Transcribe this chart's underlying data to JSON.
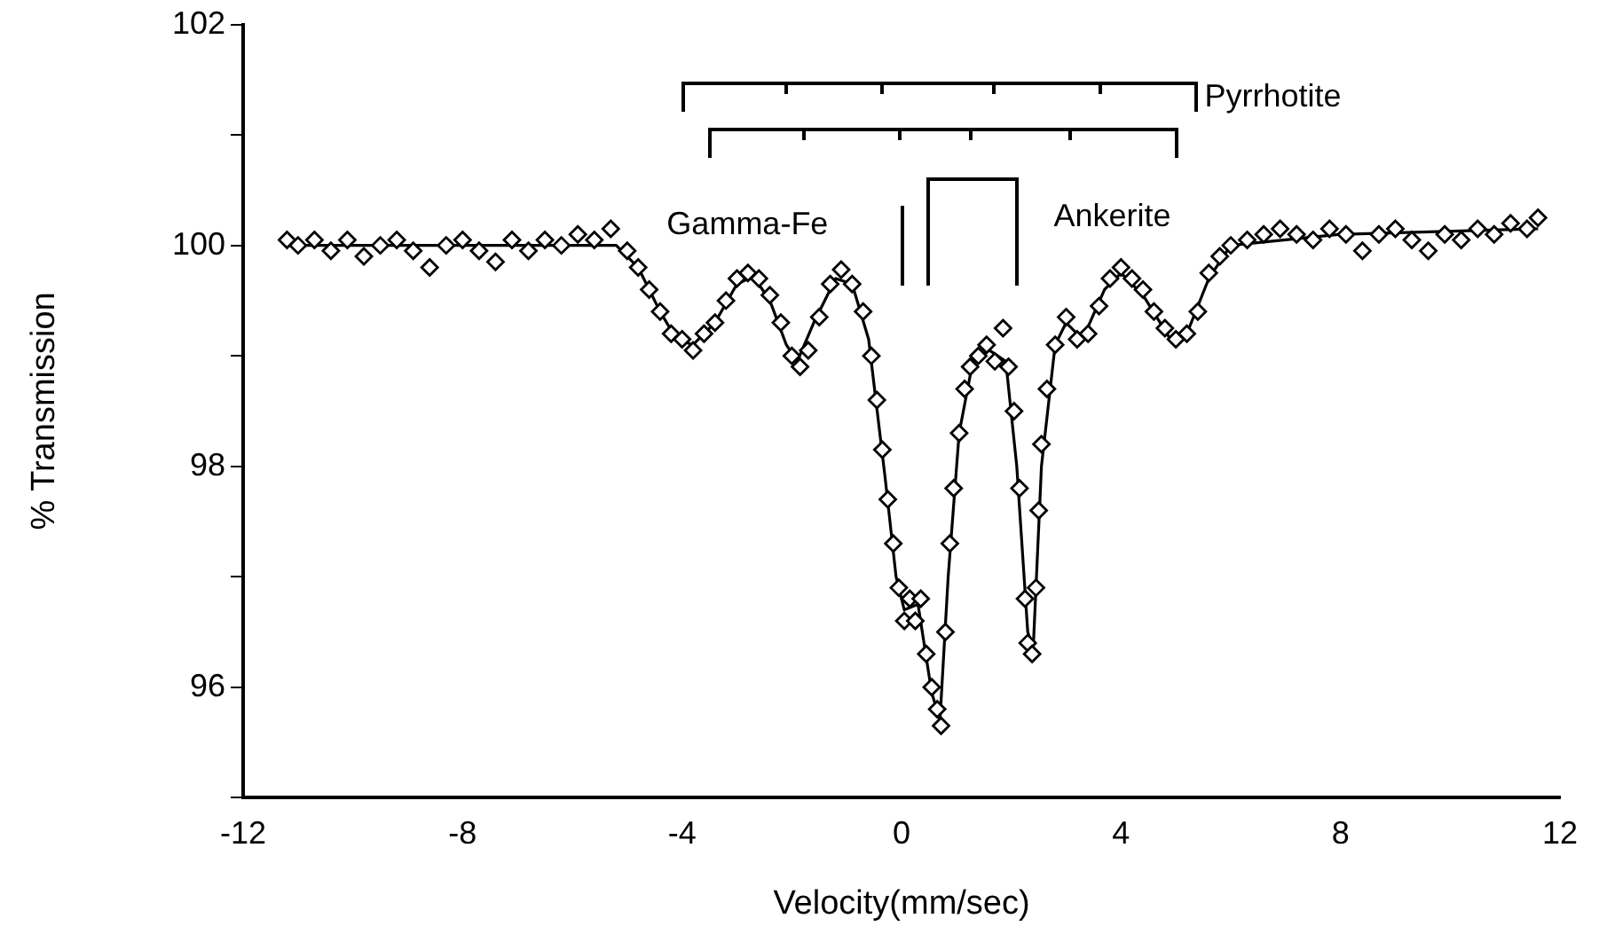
{
  "chart_data": {
    "type": "scatter",
    "xlabel": "Velocity(mm/sec)",
    "ylabel": "% Transmission",
    "xlim": [
      -12,
      12
    ],
    "xticks": [
      -12,
      -8,
      -4,
      0,
      4,
      8,
      12
    ],
    "ylim": [
      95,
      102
    ],
    "yticks": [
      {
        "value": 95,
        "label": null
      },
      96,
      {
        "value": 97,
        "label": null
      },
      98,
      {
        "value": 99,
        "label": null
      },
      100,
      {
        "value": 101,
        "label": null
      },
      102
    ],
    "grid": false,
    "legend": false,
    "marker": "diamond",
    "annotations": [
      "Pyrrhotite",
      "Gamma-Fe",
      "Ankerite"
    ],
    "series": [
      {
        "type": "scatter",
        "color": "#000000",
        "x": [
          -11.2,
          -11.0,
          -10.7,
          -10.4,
          -10.1,
          -9.8,
          -9.5,
          -9.2,
          -8.9,
          -8.6,
          -8.3,
          -8.0,
          -7.7,
          -7.4,
          -7.1,
          -6.8,
          -6.5,
          -6.2,
          -5.9,
          -5.6,
          -5.3,
          -5.0,
          -4.8,
          -4.6,
          -4.4,
          -4.2,
          -4.0,
          -3.8,
          -3.6,
          -3.4,
          -3.2,
          -3.0,
          -2.8,
          -2.6,
          -2.4,
          -2.2,
          -2.0,
          -1.85,
          -1.7,
          -1.5,
          -1.3,
          -1.1,
          -0.9,
          -0.7,
          -0.55,
          -0.45,
          -0.35,
          -0.25,
          -0.15,
          -0.05,
          0.05,
          0.15,
          0.25,
          0.35,
          0.45,
          0.55,
          0.65,
          0.72,
          0.8,
          0.88,
          0.95,
          1.05,
          1.15,
          1.25,
          1.4,
          1.55,
          1.7,
          1.85,
          1.95,
          2.05,
          2.15,
          2.25,
          2.3,
          2.38,
          2.45,
          2.5,
          2.55,
          2.65,
          2.8,
          3.0,
          3.2,
          3.4,
          3.6,
          3.8,
          4.0,
          4.2,
          4.4,
          4.6,
          4.8,
          5.0,
          5.2,
          5.4,
          5.6,
          5.8,
          6.0,
          6.3,
          6.6,
          6.9,
          7.2,
          7.5,
          7.8,
          8.1,
          8.4,
          8.7,
          9.0,
          9.3,
          9.6,
          9.9,
          10.2,
          10.5,
          10.8,
          11.1,
          11.4,
          11.6
        ],
        "values": [
          100.05,
          100.0,
          100.05,
          99.95,
          100.05,
          99.9,
          100.0,
          100.05,
          99.95,
          99.8,
          100.0,
          100.05,
          99.95,
          99.85,
          100.05,
          99.95,
          100.05,
          100.0,
          100.1,
          100.05,
          100.15,
          99.95,
          99.8,
          99.6,
          99.4,
          99.2,
          99.15,
          99.05,
          99.2,
          99.3,
          99.5,
          99.7,
          99.75,
          99.7,
          99.55,
          99.3,
          99.0,
          98.9,
          99.05,
          99.35,
          99.65,
          99.78,
          99.65,
          99.4,
          99.0,
          98.6,
          98.15,
          97.7,
          97.3,
          96.9,
          96.6,
          96.8,
          96.6,
          96.8,
          96.3,
          96.0,
          95.8,
          95.65,
          96.5,
          97.3,
          97.8,
          98.3,
          98.7,
          98.9,
          99.0,
          99.1,
          98.95,
          99.25,
          98.9,
          98.5,
          97.8,
          96.8,
          96.4,
          96.3,
          96.9,
          97.6,
          98.2,
          98.7,
          99.1,
          99.35,
          99.15,
          99.2,
          99.45,
          99.7,
          99.8,
          99.7,
          99.6,
          99.4,
          99.25,
          99.15,
          99.2,
          99.4,
          99.75,
          99.9,
          100.0,
          100.05,
          100.1,
          100.15,
          100.1,
          100.05,
          100.15,
          100.1,
          99.95,
          100.1,
          100.15,
          100.05,
          99.95,
          100.1,
          100.05,
          100.15,
          100.1,
          100.2,
          100.15,
          100.25
        ]
      },
      {
        "type": "line",
        "color": "#000000",
        "marker": "none",
        "line_style": "solid",
        "x": [
          -11.2,
          -5.2,
          -4.8,
          -4.4,
          -4.1,
          -3.8,
          -3.4,
          -3.0,
          -2.7,
          -2.4,
          -2.1,
          -1.9,
          -1.6,
          -1.2,
          -0.9,
          -0.6,
          -0.3,
          -0.1,
          0.05,
          0.3,
          0.55,
          0.7,
          0.85,
          1.05,
          1.3,
          1.6,
          1.9,
          2.1,
          2.3,
          2.4,
          2.55,
          2.8,
          3.0,
          3.3,
          3.7,
          4.0,
          4.4,
          4.9,
          5.2,
          5.6,
          6.0,
          8.0,
          11.6
        ],
        "values": [
          100.0,
          100.0,
          99.8,
          99.4,
          99.15,
          99.1,
          99.3,
          99.65,
          99.72,
          99.5,
          99.1,
          98.95,
          99.3,
          99.7,
          99.65,
          99.15,
          97.9,
          97.0,
          96.7,
          96.75,
          95.95,
          95.7,
          97.0,
          98.3,
          98.95,
          99.05,
          98.95,
          98.0,
          96.5,
          96.35,
          98.0,
          99.1,
          99.3,
          99.15,
          99.6,
          99.75,
          99.55,
          99.15,
          99.2,
          99.7,
          100.0,
          100.1,
          100.15
        ]
      }
    ]
  }
}
